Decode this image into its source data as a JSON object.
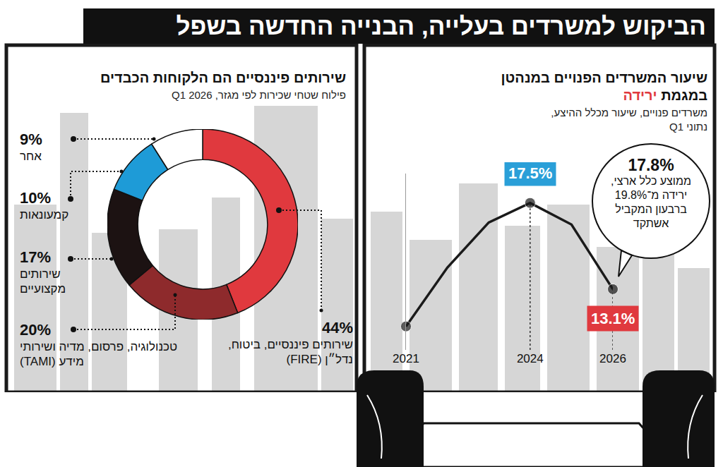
{
  "headline": "הביקוש למשרדים בעלייה, הבנייה החדשה בשפל",
  "chart_data": [
    {
      "type": "line",
      "title": "שיעור המשרדים הפנויים במנהטן במגמת ירידה",
      "subtitle": "משרדים פנויים, שיעור מכלל ההיצע, נתוני Q1",
      "x": [
        2021,
        2022,
        2023,
        2024,
        2025,
        2026
      ],
      "values": [
        11.2,
        14.2,
        16.5,
        17.5,
        16.4,
        13.1
      ],
      "color": "#1a1a1a",
      "marker": "circle",
      "xlim": [
        2021,
        2026
      ],
      "xticks": [
        2021,
        2024,
        2026
      ],
      "ylim": [
        10,
        19
      ],
      "yticks": [],
      "tick_labels": "x",
      "grid": false,
      "annotations": [
        {
          "x": 2024,
          "y": 17.5,
          "text": "17.5%",
          "color": "#2a9fd8"
        },
        {
          "x": 2026,
          "y": 13.1,
          "text": "13.1%",
          "color": "#e0393e"
        }
      ],
      "note": {
        "title": "17.8%",
        "text": "ממוצע כלל ארצי, ירידה מ־19.8% ברבעון המקביל אשתקד"
      }
    },
    {
      "type": "pie",
      "title": "שירותים פיננסיים הם הלקוחות הכבדים",
      "subtitle": "פילוח שטחי שכירות לפי מגזר, Q1 2026",
      "categories": [
        "שירותים פיננסיים, ביטוח, נדל״ן (FIRE)",
        "טכנולוגיה, פרסום, מדיה ושירותי מידע (TAMI)",
        "שירותים מקצועיים",
        "קמעונאות",
        "אחר"
      ],
      "values": [
        44,
        20,
        17,
        10,
        9
      ],
      "value_labels": [
        "44%",
        "20%",
        "17%",
        "10%",
        "9%"
      ],
      "colors": [
        "#e0393e",
        "#8e2a2c",
        "#1c1212",
        "#1e9bd7",
        "#ffffff"
      ],
      "data_labels": true
    }
  ]
}
